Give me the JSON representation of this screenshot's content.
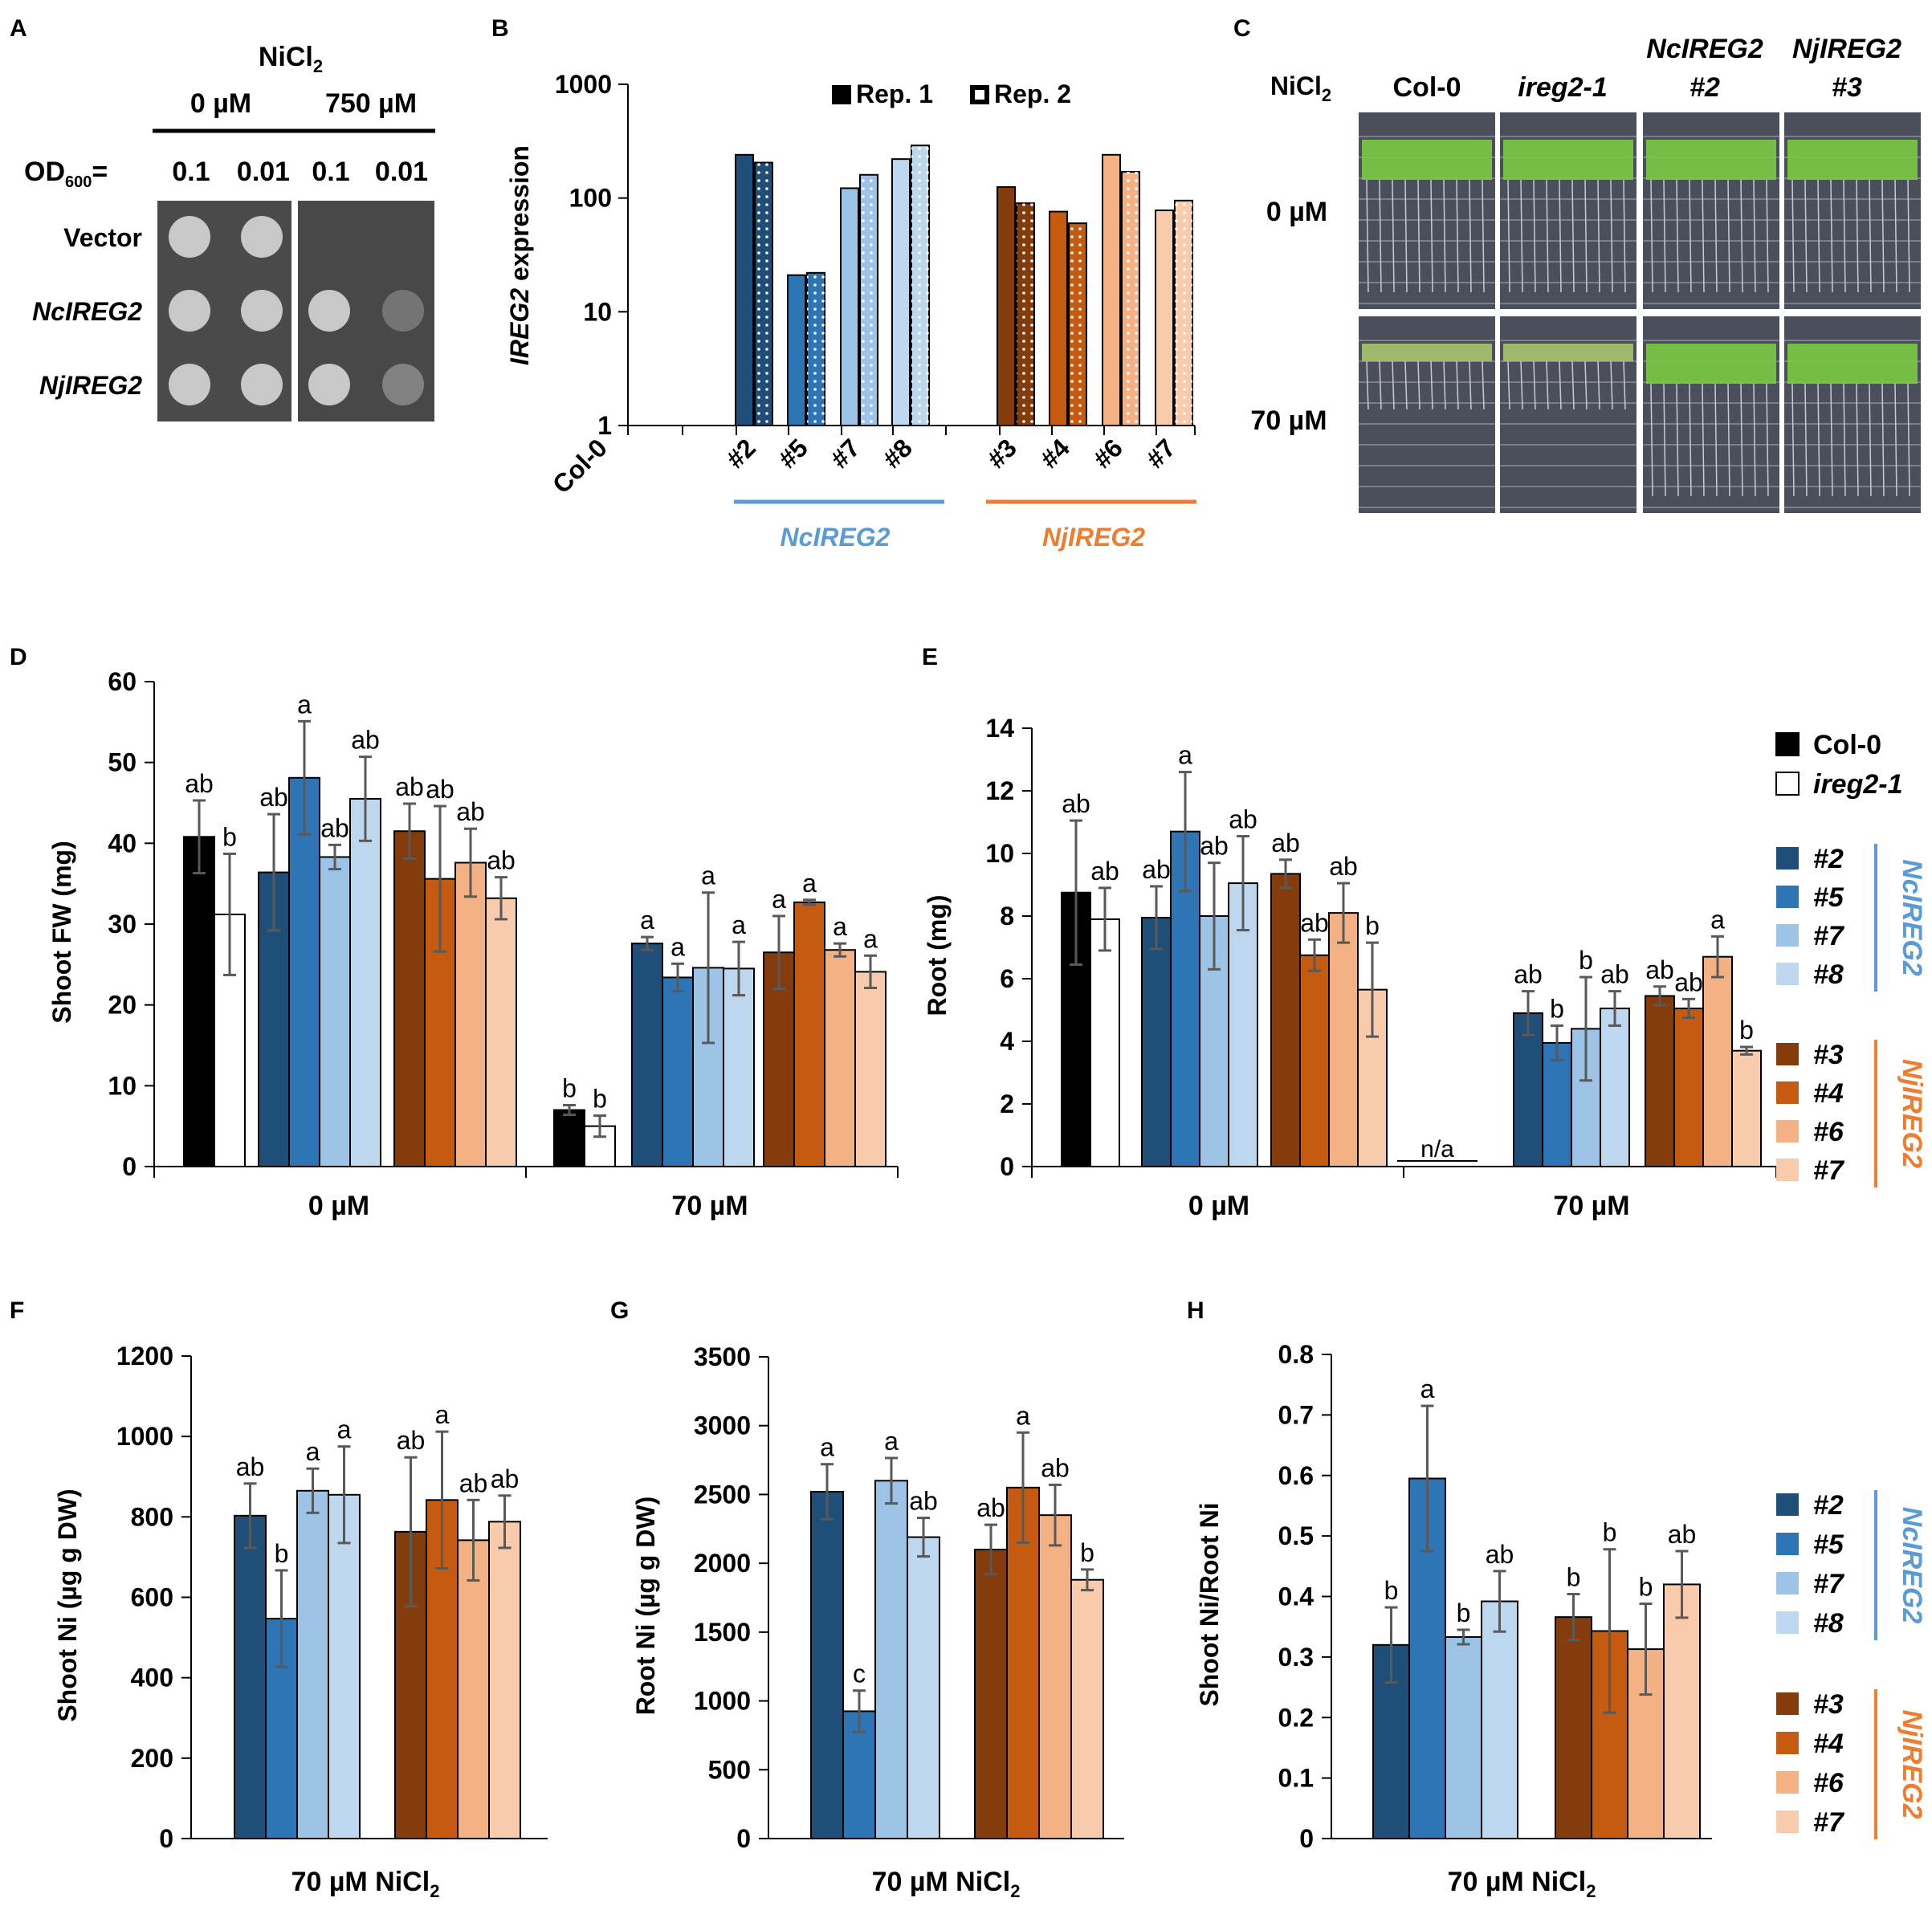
{
  "colors": {
    "nc2": "#1f4e79",
    "nc5": "#2e75b6",
    "nc7": "#9dc3e6",
    "nc8": "#bdd7ee",
    "nj3": "#843c0c",
    "nj4": "#c55a11",
    "nj6": "#f4b183",
    "nj7": "#f8cbad",
    "col0": "#000000",
    "ireg": "#ffffff",
    "ncAccent": "#5b9bd5",
    "njAccent": "#ed7d31"
  },
  "panel_a": {
    "letter": "A",
    "treatment_label": "NiCl",
    "treatment_sub": "2",
    "concentrations": [
      "0 µM",
      "750 µM"
    ],
    "od_label": "OD",
    "od_sub": "600",
    "od_suffix": "=",
    "od_values": [
      "0.1",
      "0.01",
      "0.1",
      "0.01"
    ],
    "rows": [
      "Vector",
      "NcIREG2",
      "NjIREG2"
    ]
  },
  "panel_c": {
    "letter": "C",
    "treatment_label": "NiCl",
    "treatment_sub": "2",
    "columns": [
      {
        "line1": "Col-0",
        "line2": "",
        "italic": false
      },
      {
        "line1": "ireg2-1",
        "line2": "",
        "italic": true
      },
      {
        "line1": "NcIREG2",
        "line2": "#2",
        "italic": true
      },
      {
        "line1": "NjIREG2",
        "line2": "#3",
        "italic": true
      }
    ],
    "rows": [
      "0 µM",
      "70 µM"
    ]
  },
  "legend_e": {
    "col0": "Col-0",
    "ireg": "ireg2-1",
    "nc": [
      "#2",
      "#5",
      "#7",
      "#8"
    ],
    "nj": [
      "#3",
      "#4",
      "#6",
      "#7"
    ],
    "nc_group": "NcIREG2",
    "nj_group": "NjIREG2"
  },
  "legend_h": {
    "nc": [
      "#2",
      "#5",
      "#7",
      "#8"
    ],
    "nj": [
      "#3",
      "#4",
      "#6",
      "#7"
    ],
    "nc_group": "NcIREG2",
    "nj_group": "NjIREG2"
  },
  "chart_data": [
    {
      "panel": "B",
      "type": "bar",
      "ylabel_italic": "IREG2",
      "ylabel_rest": " expression",
      "yscale": "log",
      "ylim": [
        1,
        1000
      ],
      "yticks": [
        "1",
        "10",
        "100",
        "1000"
      ],
      "legend": [
        "Rep. 1",
        "Rep. 2"
      ],
      "categories": [
        "Col-0",
        "#2",
        "#5",
        "#7",
        "#8",
        "#3",
        "#4",
        "#6",
        "#7"
      ],
      "groups": [
        "NcIREG2",
        "NjIREG2"
      ],
      "series": [
        {
          "name": "Rep. 1",
          "values": [
            null,
            240,
            21,
            122,
            220,
            125,
            76,
            240,
            78
          ]
        },
        {
          "name": "Rep. 2",
          "values": [
            null,
            205,
            22,
            160,
            290,
            90,
            60,
            170,
            95
          ]
        }
      ]
    },
    {
      "panel": "D",
      "type": "bar",
      "ylabel": "Shoot FW (mg)",
      "ylim": [
        0,
        60
      ],
      "yticks": [
        "0",
        "10",
        "20",
        "30",
        "40",
        "50",
        "60"
      ],
      "groups": [
        "0 µM",
        "70 µM"
      ],
      "categories": [
        "Col-0",
        "ireg2-1",
        "NcIREG2 #2",
        "NcIREG2 #5",
        "NcIREG2 #7",
        "NcIREG2 #8",
        "NjIREG2 #3",
        "NjIREG2 #4",
        "NjIREG2 #6",
        "NjIREG2 #7"
      ],
      "series": [
        {
          "name": "0 µM",
          "values": [
            40.8,
            31.2,
            36.4,
            48.1,
            38.3,
            45.5,
            41.5,
            35.6,
            37.6,
            33.2
          ],
          "errors": [
            4.5,
            7.5,
            7.2,
            7.0,
            1.5,
            5.2,
            3.4,
            9.0,
            4.2,
            2.6
          ],
          "letters": [
            "ab",
            "b",
            "ab",
            "a",
            "ab",
            "ab",
            "ab",
            "ab",
            "ab",
            "ab"
          ]
        },
        {
          "name": "70 µM",
          "values": [
            7.0,
            5.0,
            27.6,
            23.4,
            24.6,
            24.5,
            26.5,
            32.7,
            26.8,
            24.1
          ],
          "errors": [
            0.6,
            1.3,
            0.8,
            1.7,
            9.3,
            3.3,
            4.5,
            0.3,
            0.8,
            2.0
          ],
          "letters": [
            "b",
            "b",
            "a",
            "a",
            "a",
            "a",
            "a",
            "a",
            "a",
            "a"
          ]
        }
      ]
    },
    {
      "panel": "E",
      "type": "bar",
      "ylabel": "Root (mg)",
      "ylim": [
        0,
        14
      ],
      "yticks": [
        "0",
        "2",
        "4",
        "6",
        "8",
        "10",
        "12",
        "14"
      ],
      "groups": [
        "0 µM",
        "70 µM"
      ],
      "categories": [
        "Col-0",
        "ireg2-1",
        "NcIREG2 #2",
        "NcIREG2 #5",
        "NcIREG2 #7",
        "NcIREG2 #8",
        "NjIREG2 #3",
        "NjIREG2 #4",
        "NjIREG2 #6",
        "NjIREG2 #7"
      ],
      "series": [
        {
          "name": "0 µM",
          "values": [
            8.75,
            7.9,
            7.95,
            10.7,
            8.0,
            9.05,
            9.35,
            6.75,
            8.1,
            5.65
          ],
          "errors": [
            2.3,
            1.0,
            1.0,
            1.9,
            1.7,
            1.5,
            0.45,
            0.5,
            0.95,
            1.5
          ],
          "letters": [
            "ab",
            "ab",
            "ab",
            "a",
            "ab",
            "ab",
            "ab",
            "ab",
            "ab",
            "b"
          ]
        },
        {
          "name": "70 µM",
          "values": [
            null,
            null,
            4.9,
            3.95,
            4.4,
            5.05,
            5.45,
            5.05,
            6.7,
            3.7
          ],
          "errors": [
            null,
            null,
            0.7,
            0.55,
            1.65,
            0.55,
            0.3,
            0.3,
            0.65,
            0.12
          ],
          "letters": [
            "",
            "",
            "ab",
            "b",
            "b",
            "ab",
            "ab",
            "ab",
            "a",
            "b"
          ]
        }
      ],
      "annotation": "n/a"
    },
    {
      "panel": "F",
      "type": "bar",
      "ylabel": "Shoot Ni (µg g-1 DW)",
      "ylim": [
        0,
        1200
      ],
      "yticks": [
        "0",
        "200",
        "400",
        "600",
        "800",
        "1000",
        "1200"
      ],
      "xlabel": "70 µM NiCl2",
      "categories": [
        "NcIREG2 #2",
        "NcIREG2 #5",
        "NcIREG2 #7",
        "NcIREG2 #8",
        "NjIREG2 #3",
        "NjIREG2 #4",
        "NjIREG2 #6",
        "NjIREG2 #7"
      ],
      "values": [
        803,
        547,
        865,
        855,
        763,
        842,
        742,
        788
      ],
      "errors": [
        80,
        120,
        55,
        120,
        185,
        170,
        100,
        65
      ],
      "letters": [
        "ab",
        "b",
        "a",
        "a",
        "ab",
        "a",
        "ab",
        "ab"
      ]
    },
    {
      "panel": "G",
      "type": "bar",
      "ylabel": "Root Ni (µg g-1 DW)",
      "ylim": [
        0,
        3500
      ],
      "yticks": [
        "0",
        "500",
        "1000",
        "1500",
        "2000",
        "2500",
        "3000",
        "3500"
      ],
      "xlabel": "70 µM NiCl2",
      "categories": [
        "NcIREG2 #2",
        "NcIREG2 #5",
        "NcIREG2 #7",
        "NcIREG2 #8",
        "NjIREG2 #3",
        "NjIREG2 #4",
        "NjIREG2 #6",
        "NjIREG2 #7"
      ],
      "values": [
        2520,
        925,
        2600,
        2190,
        2100,
        2550,
        2350,
        1880
      ],
      "errors": [
        200,
        150,
        165,
        140,
        180,
        400,
        220,
        75
      ],
      "letters": [
        "a",
        "c",
        "a",
        "ab",
        "ab",
        "a",
        "ab",
        "b"
      ]
    },
    {
      "panel": "H",
      "type": "bar",
      "ylabel": "Shoot Ni/Root Ni",
      "ylim": [
        0,
        0.8
      ],
      "yticks": [
        "0",
        "0.1",
        "0.2",
        "0.3",
        "0.4",
        "0.5",
        "0.6",
        "0.7",
        "0.8"
      ],
      "xlabel": "70 µM NiCl2",
      "categories": [
        "NcIREG2 #2",
        "NcIREG2 #5",
        "NcIREG2 #7",
        "NcIREG2 #8",
        "NjIREG2 #3",
        "NjIREG2 #4",
        "NjIREG2 #6",
        "NjIREG2 #7"
      ],
      "values": [
        0.32,
        0.595,
        0.333,
        0.392,
        0.366,
        0.343,
        0.313,
        0.42
      ],
      "errors": [
        0.062,
        0.12,
        0.012,
        0.05,
        0.038,
        0.135,
        0.075,
        0.055
      ],
      "letters": [
        "b",
        "a",
        "b",
        "ab",
        "b",
        "b",
        "b",
        "ab"
      ]
    }
  ]
}
